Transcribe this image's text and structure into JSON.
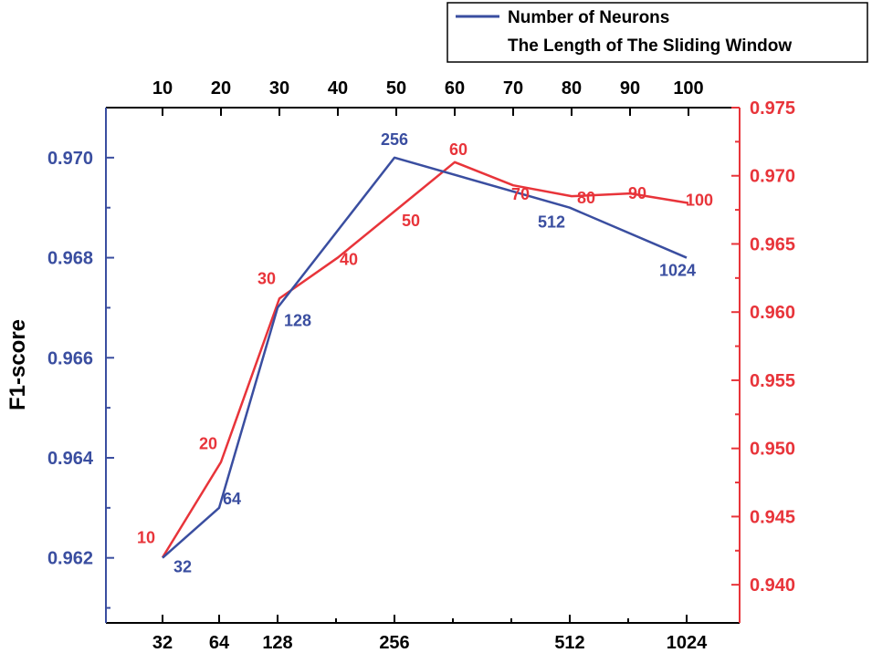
{
  "chart_data": {
    "type": "line",
    "title": "",
    "ylabel": "F1-score",
    "colors": {
      "neurons": "#3a4ea0",
      "window": "#e8343a",
      "axis": "#000000"
    },
    "bottom_axis": {
      "ticks": [
        "32",
        "64",
        "128",
        "256",
        "512",
        "1024"
      ],
      "positions": [
        32,
        64,
        128,
        256,
        512,
        1024
      ]
    },
    "top_axis": {
      "ticks": [
        "10",
        "20",
        "30",
        "40",
        "50",
        "60",
        "70",
        "80",
        "90",
        "100"
      ],
      "positions": [
        10,
        20,
        30,
        40,
        50,
        60,
        70,
        80,
        90,
        100
      ]
    },
    "left_axis": {
      "ylim": [
        0.9607,
        0.971
      ],
      "ticks": [
        0.962,
        0.964,
        0.966,
        0.968,
        0.97
      ],
      "tick_labels": [
        "0.962",
        "0.964",
        "0.966",
        "0.968",
        "0.970"
      ]
    },
    "right_axis": {
      "ylim": [
        0.9372,
        0.975
      ],
      "ticks": [
        0.94,
        0.945,
        0.95,
        0.955,
        0.96,
        0.965,
        0.97,
        0.975
      ],
      "tick_labels": [
        "0.940",
        "0.945",
        "0.950",
        "0.955",
        "0.960",
        "0.965",
        "0.970",
        "0.975"
      ]
    },
    "series": [
      {
        "name": "Number of Neurons",
        "axis": "bottom-left",
        "x": [
          32,
          64,
          128,
          256,
          512,
          1024
        ],
        "y": [
          0.962,
          0.963,
          0.967,
          0.97,
          0.969,
          0.968
        ],
        "labels": [
          "32",
          "64",
          "128",
          "256",
          "512",
          "1024"
        ]
      },
      {
        "name": "The Length of The Sliding Window",
        "axis": "top-right",
        "x": [
          10,
          20,
          30,
          40,
          50,
          60,
          70,
          80,
          90,
          100
        ],
        "y": [
          0.942,
          0.949,
          0.961,
          0.964,
          0.9675,
          0.971,
          0.9693,
          0.9685,
          0.9687,
          0.968
        ],
        "labels": [
          "10",
          "20",
          "30",
          "40",
          "50",
          "60",
          "70",
          "80",
          "90",
          "100"
        ]
      }
    ],
    "legend": {
      "placement": "top-right",
      "entries": [
        "Number of Neurons",
        "The Length of The Sliding Window"
      ]
    }
  }
}
